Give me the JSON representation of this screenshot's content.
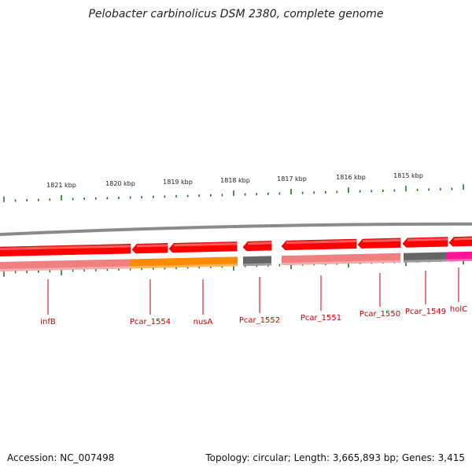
{
  "title": "Pelobacter carbinolicus DSM 2380, complete genome",
  "accession": "Accession: NC_007498",
  "summary": "Topology: circular; Length: 3,665,893 bp; Genes: 3,415",
  "colors": {
    "backbone": "#8a8a8a",
    "gene_red": "#ff0000",
    "gene_dark_red": "#c80000",
    "light_red": "#f08080",
    "orange": "#ff8c00",
    "gray": "#666666",
    "magenta": "#ff1493",
    "tick_green": "#1a7a1a",
    "label_red": "#cc0000"
  },
  "ruler": {
    "labels": [
      "1821 kbp",
      "1820 kbp",
      "1819 kbp",
      "1818 kbp",
      "1817 kbp",
      "1816 kbp",
      "1815 kbp"
    ],
    "kbp": [
      1821,
      1820,
      1819,
      1818,
      1817,
      1816,
      1815
    ]
  },
  "genes": [
    {
      "name": "infB",
      "track": "red",
      "color_key": "gene_red"
    },
    {
      "name": "Pcar_1554",
      "track": "red",
      "color_key": "gene_red"
    },
    {
      "name": "nusA",
      "track": "red",
      "color_key": "gene_red"
    },
    {
      "name": "Pcar_1552",
      "track": "red",
      "color_key": "gene_red"
    },
    {
      "name": "Pcar_1551",
      "track": "red",
      "color_key": "gene_red"
    },
    {
      "name": "Pcar_1550",
      "track": "red",
      "color_key": "gene_red"
    },
    {
      "name": "Pcar_1549",
      "track": "red",
      "color_key": "gene_red"
    },
    {
      "name": "holC",
      "track": "red",
      "color_key": "gene_red"
    }
  ],
  "gene_labels": [
    "infB",
    "Pcar_1554",
    "nusA",
    "Pcar_1552",
    "Pcar_1551",
    "Pcar_1550",
    "Pcar_1549",
    "holC"
  ],
  "feature_track": [
    {
      "name": "infB-feature",
      "color_key": "light_red"
    },
    {
      "name": "Pcar_1554-feature",
      "color_key": "orange"
    },
    {
      "name": "nusA-feature",
      "color_key": "orange"
    },
    {
      "name": "Pcar_1552-feature",
      "color_key": "gray"
    },
    {
      "name": "Pcar_1551-feature",
      "color_key": "light_red"
    },
    {
      "name": "Pcar_1550-feature",
      "color_key": "light_red"
    },
    {
      "name": "Pcar_1549-feature",
      "color_key": "gray"
    },
    {
      "name": "holC-feature",
      "color_key": "magenta"
    }
  ]
}
